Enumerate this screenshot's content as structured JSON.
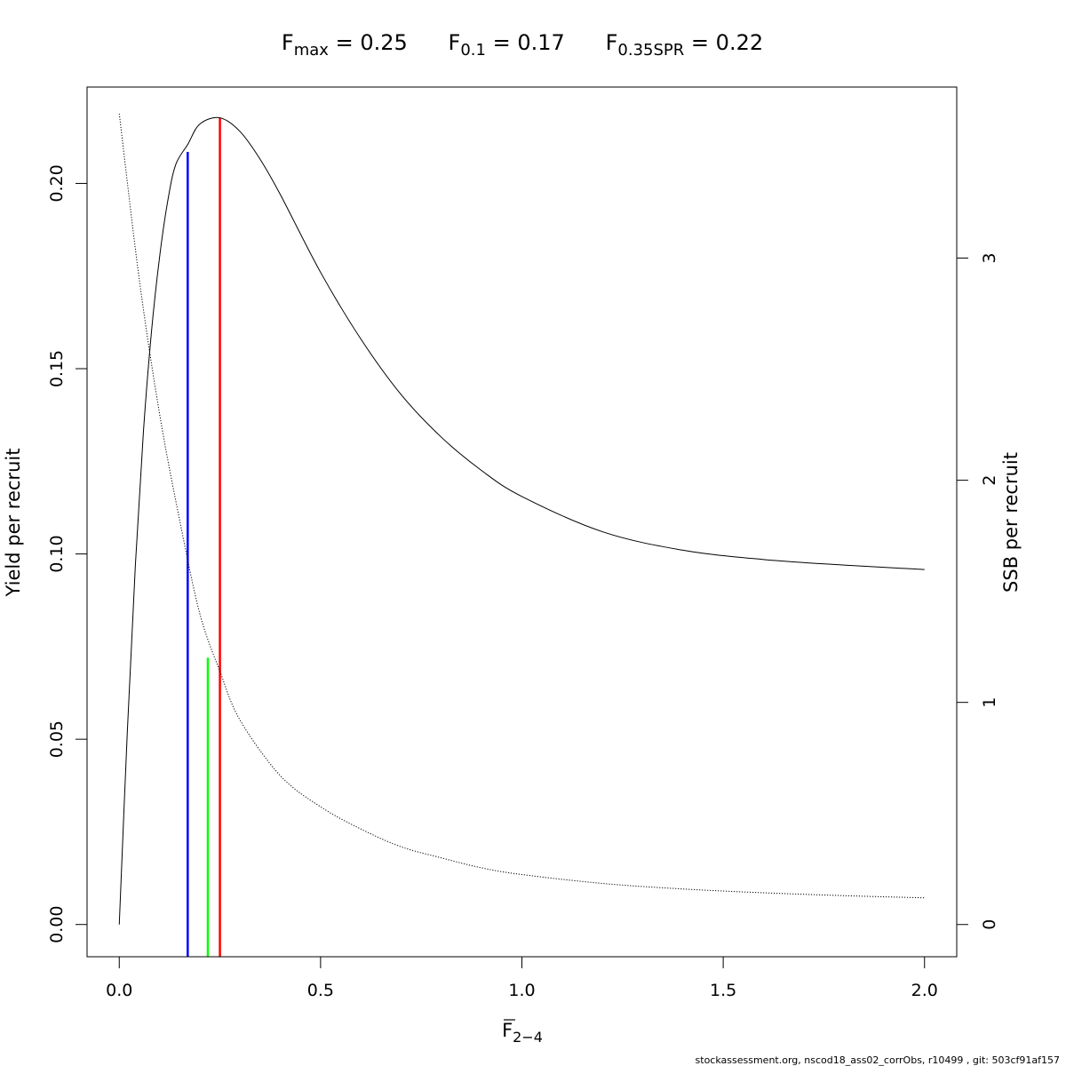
{
  "chart_data": {
    "type": "line",
    "title": {
      "fmax_label": "F",
      "fmax_sub": "max",
      "fmax_value": "0.25",
      "f01_label": "F",
      "f01_sub": "0.1",
      "f01_value": "0.17",
      "fspr_label": "F",
      "fspr_sub": "0.35SPR",
      "fspr_value": "0.22",
      "equals": "="
    },
    "xlabel": "F",
    "xlabel_sub": "2−4",
    "ylabel": "Yield per recruit",
    "y2label": "SSB per recruit",
    "xlim": [
      -0.08,
      2.08
    ],
    "ylim": [
      -0.0087,
      0.226
    ],
    "y2lim": [
      -0.145,
      3.77
    ],
    "x_ticks": [
      {
        "value": 0.0,
        "label": "0.0"
      },
      {
        "value": 0.5,
        "label": "0.5"
      },
      {
        "value": 1.0,
        "label": "1.0"
      },
      {
        "value": 1.5,
        "label": "1.5"
      },
      {
        "value": 2.0,
        "label": "2.0"
      }
    ],
    "y_ticks": [
      {
        "value": 0.0,
        "label": "0.00"
      },
      {
        "value": 0.05,
        "label": "0.05"
      },
      {
        "value": 0.1,
        "label": "0.10"
      },
      {
        "value": 0.15,
        "label": "0.15"
      },
      {
        "value": 0.2,
        "label": "0.20"
      }
    ],
    "y2_ticks": [
      {
        "value": 0,
        "label": "0"
      },
      {
        "value": 1,
        "label": "1"
      },
      {
        "value": 2,
        "label": "2"
      },
      {
        "value": 3,
        "label": "3"
      }
    ],
    "series": [
      {
        "line": "solid",
        "axis": "left",
        "x": [
          0.0,
          0.02,
          0.04,
          0.06,
          0.08,
          0.1,
          0.12,
          0.14,
          0.17,
          0.2,
          0.25,
          0.3,
          0.35,
          0.4,
          0.5,
          0.6,
          0.7,
          0.8,
          0.9,
          1.0,
          1.2,
          1.4,
          1.6,
          1.8,
          2.0
        ],
        "y": [
          0.0,
          0.052,
          0.097,
          0.133,
          0.16,
          0.18,
          0.195,
          0.205,
          0.2105,
          0.216,
          0.2177,
          0.214,
          0.2065,
          0.197,
          0.176,
          0.158,
          0.143,
          0.1315,
          0.1225,
          0.1155,
          0.106,
          0.101,
          0.0985,
          0.097,
          0.0958
        ]
      },
      {
        "line": "dotted",
        "axis": "right",
        "x": [
          0.0,
          0.05,
          0.1,
          0.15,
          0.2,
          0.25,
          0.3,
          0.4,
          0.5,
          0.6,
          0.7,
          0.8,
          0.9,
          1.0,
          1.2,
          1.4,
          1.6,
          1.8,
          2.0
        ],
        "y": [
          3.65,
          2.9,
          2.3,
          1.82,
          1.4,
          1.14,
          0.92,
          0.67,
          0.53,
          0.43,
          0.35,
          0.3,
          0.255,
          0.225,
          0.185,
          0.16,
          0.143,
          0.13,
          0.12
        ]
      }
    ],
    "reference_lines": [
      {
        "x": 0.17,
        "y": 0.2085,
        "color": "#0000ff"
      },
      {
        "x": 0.22,
        "y": 0.072,
        "color": "#00ff00"
      },
      {
        "x": 0.25,
        "y": 0.2177,
        "color": "#ff0000"
      }
    ],
    "footer": "stockassessment.org, nscod18_ass02_corrObs, r10499 , git: 503cf91af157",
    "grid": false,
    "legend": "none"
  }
}
